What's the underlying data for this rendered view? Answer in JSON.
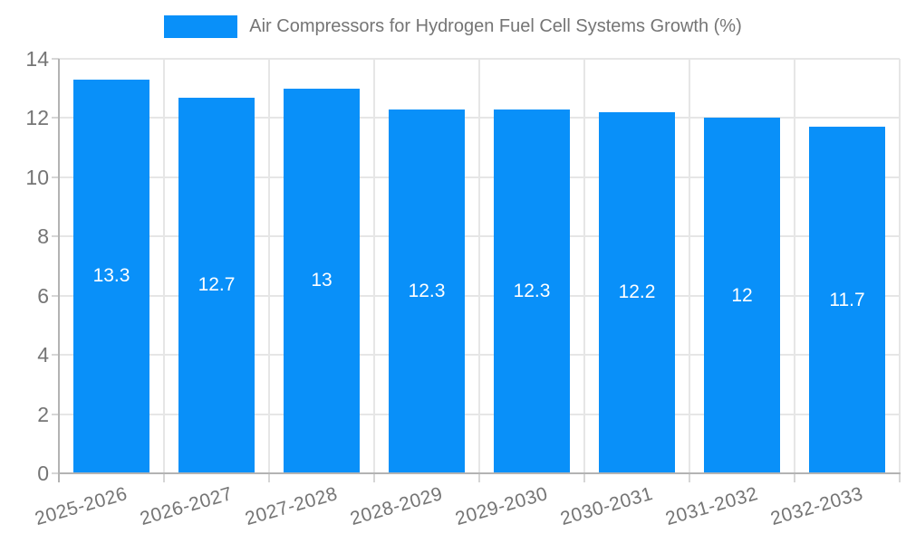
{
  "legend": {
    "label": "Air Compressors for Hydrogen Fuel Cell Systems Growth (%)"
  },
  "colors": {
    "bar": "#0990f9",
    "grid": "#e6e6e6",
    "axis_line": "#b3b3b3",
    "tick": "#d6d6d6",
    "axis_text": "#757575",
    "value_label_text": "#ffffff",
    "background": "#ffffff"
  },
  "chart_data": {
    "type": "bar",
    "title": "Air Compressors for Hydrogen Fuel Cell Systems Growth (%)",
    "categories": [
      "2025-2026",
      "2026-2027",
      "2027-2028",
      "2028-2029",
      "2029-2030",
      "2030-2031",
      "2031-2032",
      "2032-2033"
    ],
    "values": [
      13.3,
      12.7,
      13,
      12.3,
      12.3,
      12.2,
      12,
      11.7
    ],
    "value_labels": [
      "13.3",
      "12.7",
      "13",
      "12.3",
      "12.3",
      "12.2",
      "12",
      "11.7"
    ],
    "xlabel": "",
    "ylabel": "",
    "ylim": [
      0,
      14
    ],
    "y_ticks": [
      0,
      2,
      4,
      6,
      8,
      10,
      12,
      14
    ],
    "grid": true,
    "legend_position": "top",
    "value_labels_position": "center",
    "x_label_rotation_deg": -16
  }
}
